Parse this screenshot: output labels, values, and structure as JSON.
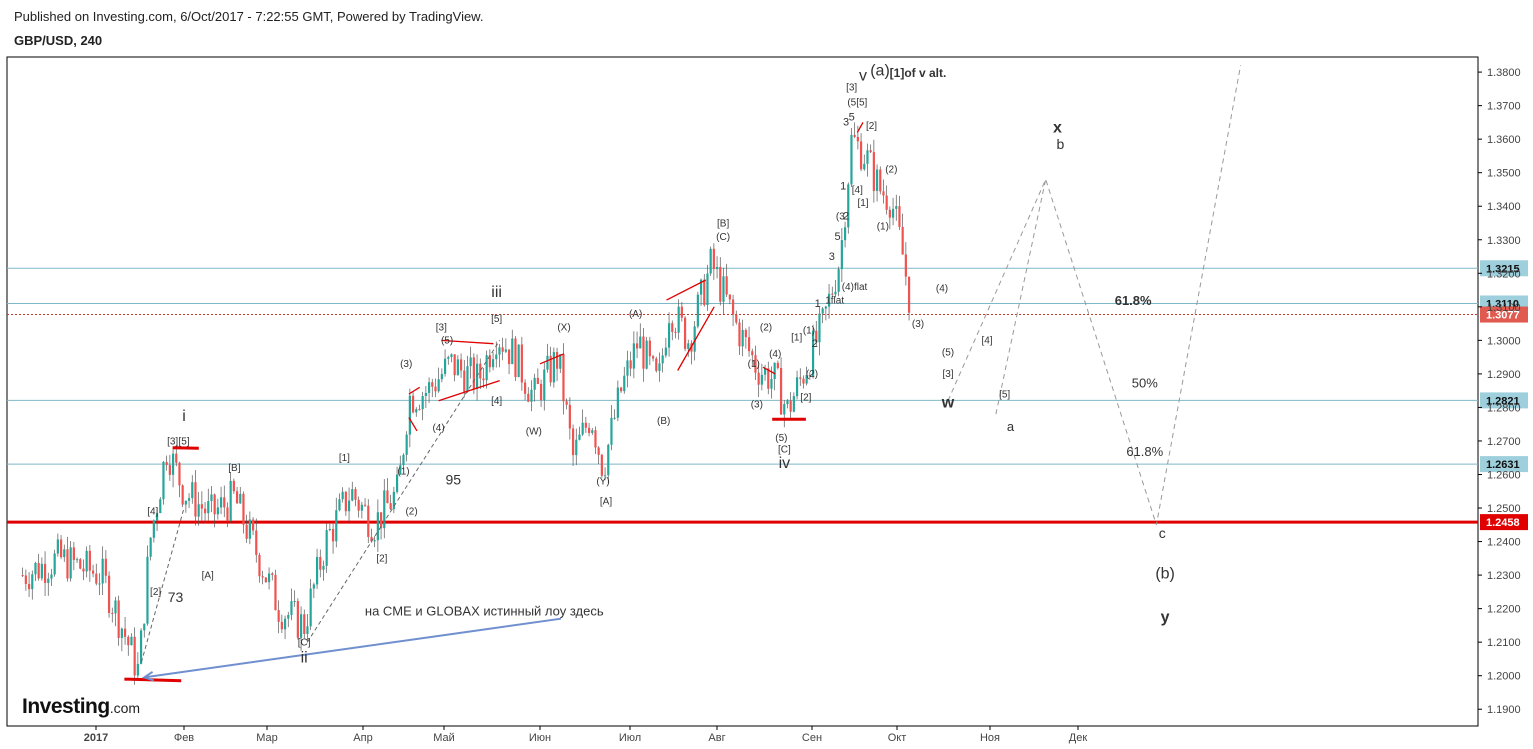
{
  "header": {
    "published": "Published on Investing.com, 6/Oct/2017 - 7:22:55 GMT, Powered by TradingView.",
    "symbol": "GBP/USD, 240"
  },
  "logo": {
    "main": "Investing",
    "suffix": ".com"
  },
  "colors": {
    "up": "#26a69a",
    "down": "#ef5350",
    "wick": "#555555",
    "red_line": "#e00000",
    "teal_line": "#7fb8c8",
    "orange": "#f5a623",
    "cyan": "#2fd0e0",
    "blue_arrow": "#6f8fcf",
    "dashed": "#999999"
  },
  "chart_data": {
    "type": "candlestick",
    "title": "GBP/USD, 240",
    "ylim": [
      1.185,
      1.3845
    ],
    "y_ticks": [
      "1.1900",
      "1.2000",
      "1.2100",
      "1.2200",
      "1.2300",
      "1.2400",
      "1.2500",
      "1.2600",
      "1.2700",
      "1.2800",
      "1.2900",
      "1.3000",
      "1.3100",
      "1.3200",
      "1.3300",
      "1.3400",
      "1.3500",
      "1.3600",
      "1.3700",
      "1.3800"
    ],
    "x_labels": [
      "2017",
      "Фев",
      "Мар",
      "Апр",
      "Май",
      "Июн",
      "Июл",
      "Авг",
      "Сен",
      "Окт",
      "Ноя",
      "Дек"
    ],
    "price_path": [
      [
        "2016-12-22",
        1.23
      ],
      [
        "2016-12-27",
        1.235
      ],
      [
        "2017-01-03",
        1.23
      ],
      [
        "2017-01-10",
        1.215
      ],
      [
        "2017-01-16",
        1.201
      ],
      [
        "2017-01-20",
        1.24
      ],
      [
        "2017-01-26",
        1.268
      ],
      [
        "2017-02-01",
        1.255
      ],
      [
        "2017-02-10",
        1.248
      ],
      [
        "2017-02-18",
        1.253
      ],
      [
        "2017-02-24",
        1.24
      ],
      [
        "2017-03-05",
        1.22
      ],
      [
        "2017-03-13",
        1.215
      ],
      [
        "2017-03-20",
        1.24
      ],
      [
        "2017-03-28",
        1.255
      ],
      [
        "2017-04-05",
        1.245
      ],
      [
        "2017-04-14",
        1.255
      ],
      [
        "2017-04-18",
        1.283
      ],
      [
        "2017-04-25",
        1.285
      ],
      [
        "2017-05-03",
        1.293
      ],
      [
        "2017-05-12",
        1.288
      ],
      [
        "2017-05-18",
        1.302
      ],
      [
        "2017-05-24",
        1.295
      ],
      [
        "2017-05-30",
        1.283
      ],
      [
        "2017-06-07",
        1.295
      ],
      [
        "2017-06-12",
        1.265
      ],
      [
        "2017-06-18",
        1.278
      ],
      [
        "2017-06-22",
        1.262
      ],
      [
        "2017-06-28",
        1.285
      ],
      [
        "2017-07-04",
        1.3
      ],
      [
        "2017-07-11",
        1.286
      ],
      [
        "2017-07-15",
        1.31
      ],
      [
        "2017-07-22",
        1.3
      ],
      [
        "2017-07-30",
        1.323
      ],
      [
        "2017-08-07",
        1.305
      ],
      [
        "2017-08-14",
        1.292
      ],
      [
        "2017-08-20",
        1.288
      ],
      [
        "2017-08-24",
        1.279
      ],
      [
        "2017-08-30",
        1.292
      ],
      [
        "2017-09-05",
        1.305
      ],
      [
        "2017-09-11",
        1.325
      ],
      [
        "2017-09-15",
        1.36
      ],
      [
        "2017-09-20",
        1.355
      ],
      [
        "2017-09-25",
        1.345
      ],
      [
        "2017-09-29",
        1.342
      ],
      [
        "2017-10-03",
        1.325
      ],
      [
        "2017-10-06",
        1.3077
      ]
    ],
    "current_price": "1.3077",
    "horizontal_levels": [
      {
        "price": 1.3215,
        "label": "1.3215",
        "style": "teal"
      },
      {
        "price": 1.311,
        "label": "1.3110",
        "style": "teal"
      },
      {
        "price": 1.2821,
        "label": "1.2821",
        "style": "teal"
      },
      {
        "price": 1.2631,
        "label": "1.2631",
        "style": "teal"
      },
      {
        "price": 1.2458,
        "label": "1.2458",
        "style": "red"
      }
    ],
    "fib_labels": [
      {
        "text": "61.8%",
        "date": "2017-12-20",
        "price": 1.3105,
        "color": "cyan"
      },
      {
        "text": "50%",
        "date": "2017-12-24",
        "price": 1.286,
        "color": "dark"
      },
      {
        "text": "61.8%",
        "date": "2017-12-24",
        "price": 1.2655,
        "color": "dark"
      }
    ],
    "projection_path": [
      [
        "2017-10-18",
        1.282
      ],
      [
        "2017-11-20",
        1.348
      ],
      [
        "2017-12-28",
        1.245
      ],
      [
        "2018-01-26",
        1.382
      ]
    ],
    "projection_alt": [
      [
        "2017-11-03",
        1.278
      ],
      [
        "2017-11-20",
        1.348
      ]
    ],
    "wave_labels": [
      {
        "text": "i",
        "date": "2017-02-01",
        "price": 1.276,
        "size": 16
      },
      {
        "text": "[3]",
        "date": "2017-01-28",
        "price": 1.269,
        "size": 10
      },
      {
        "text": "[5]",
        "date": "2017-02-01",
        "price": 1.269,
        "size": 10
      },
      {
        "text": "[B]",
        "date": "2017-02-18",
        "price": 1.261,
        "size": 10
      },
      {
        "text": "[1]",
        "date": "2017-03-26",
        "price": 1.264,
        "size": 10
      },
      {
        "text": "[A]",
        "date": "2017-02-09",
        "price": 1.229,
        "size": 10
      },
      {
        "text": "[4]",
        "date": "2017-01-21",
        "price": 1.248,
        "size": 10
      },
      {
        "text": "[2]",
        "date": "2017-01-22",
        "price": 1.224,
        "size": 10
      },
      {
        "text": "73",
        "date": "2017-01-29",
        "price": 1.222,
        "size": 14
      },
      {
        "text": "[2]",
        "date": "2017-04-08",
        "price": 1.234,
        "size": 10
      },
      {
        "text": "(2)",
        "date": "2017-04-19",
        "price": 1.248,
        "size": 10
      },
      {
        "text": "(1)",
        "date": "2017-04-16",
        "price": 1.26,
        "size": 10
      },
      {
        "text": "[C]",
        "date": "2017-03-13",
        "price": 1.209,
        "size": 10
      },
      {
        "text": "ii",
        "date": "2017-03-13",
        "price": 1.204,
        "size": 16
      },
      {
        "text": "95",
        "date": "2017-05-04",
        "price": 1.257,
        "size": 14
      },
      {
        "text": "(3)",
        "date": "2017-04-17",
        "price": 1.292,
        "size": 10
      },
      {
        "text": "(4)",
        "date": "2017-04-29",
        "price": 1.273,
        "size": 10
      },
      {
        "text": "[3]",
        "date": "2017-04-30",
        "price": 1.303,
        "size": 10
      },
      {
        "text": "(5)",
        "date": "2017-05-02",
        "price": 1.299,
        "size": 10
      },
      {
        "text": "iii",
        "date": "2017-05-18",
        "price": 1.313,
        "size": 16
      },
      {
        "text": "[5]",
        "date": "2017-05-18",
        "price": 1.3055,
        "size": 10
      },
      {
        "text": "[4]",
        "date": "2017-05-18",
        "price": 1.281,
        "size": 10
      },
      {
        "text": "(W)",
        "date": "2017-05-30",
        "price": 1.272,
        "size": 10
      },
      {
        "text": "(X)",
        "date": "2017-06-09",
        "price": 1.303,
        "size": 10
      },
      {
        "text": "(Y)",
        "date": "2017-06-22",
        "price": 1.257,
        "size": 10
      },
      {
        "text": "[A]",
        "date": "2017-06-23",
        "price": 1.251,
        "size": 10
      },
      {
        "text": "(A)",
        "date": "2017-07-03",
        "price": 1.307,
        "size": 10
      },
      {
        "text": "(B)",
        "date": "2017-07-13",
        "price": 1.275,
        "size": 10
      },
      {
        "text": "[B]",
        "date": "2017-08-03",
        "price": 1.334,
        "size": 10
      },
      {
        "text": "(C)",
        "date": "2017-08-03",
        "price": 1.33,
        "size": 10
      },
      {
        "text": "(2)",
        "date": "2017-08-17",
        "price": 1.303,
        "size": 10
      },
      {
        "text": "(1)",
        "date": "2017-08-13",
        "price": 1.292,
        "size": 10
      },
      {
        "text": "(4)",
        "date": "2017-08-20",
        "price": 1.295,
        "size": 10
      },
      {
        "text": "(3)",
        "date": "2017-08-14",
        "price": 1.28,
        "size": 10
      },
      {
        "text": "(5)",
        "date": "2017-08-22",
        "price": 1.27,
        "size": 10
      },
      {
        "text": "[C]",
        "date": "2017-08-23",
        "price": 1.2665,
        "size": 10
      },
      {
        "text": "iv",
        "date": "2017-08-23",
        "price": 1.262,
        "size": 16
      },
      {
        "text": "[1]",
        "date": "2017-08-27",
        "price": 1.3,
        "size": 10
      },
      {
        "text": "(1)",
        "date": "2017-08-31",
        "price": 1.302,
        "size": 10
      },
      {
        "text": "(2)",
        "date": "2017-09-01",
        "price": 1.289,
        "size": 10
      },
      {
        "text": "[2]",
        "date": "2017-08-30",
        "price": 1.282,
        "size": 10
      },
      {
        "text": "2",
        "date": "2017-09-02",
        "price": 1.298,
        "size": 11
      },
      {
        "text": "1",
        "date": "2017-09-03",
        "price": 1.31,
        "size": 11
      },
      {
        "text": "1flat",
        "date": "2017-09-09",
        "price": 1.311,
        "size": 10
      },
      {
        "text": "(4)flat",
        "date": "2017-09-16",
        "price": 1.315,
        "size": 10
      },
      {
        "text": "3",
        "date": "2017-09-08",
        "price": 1.324,
        "size": 11
      },
      {
        "text": "5",
        "date": "2017-09-10",
        "price": 1.33,
        "size": 11
      },
      {
        "text": "(3",
        "date": "2017-09-11",
        "price": 1.336,
        "size": 10
      },
      {
        "text": "2",
        "date": "2017-09-13",
        "price": 1.336,
        "size": 11
      },
      {
        "text": "1",
        "date": "2017-09-12",
        "price": 1.345,
        "size": 11
      },
      {
        "text": "[4]",
        "date": "2017-09-17",
        "price": 1.344,
        "size": 10
      },
      {
        "text": "[1]",
        "date": "2017-09-19",
        "price": 1.34,
        "size": 10
      },
      {
        "text": "3",
        "date": "2017-09-13",
        "price": 1.364,
        "size": 11
      },
      {
        "text": "5",
        "date": "2017-09-15",
        "price": 1.3655,
        "size": 11
      },
      {
        "text": "[2]",
        "date": "2017-09-22",
        "price": 1.363,
        "size": 10
      },
      {
        "text": "(5[5]",
        "date": "2017-09-17",
        "price": 1.37,
        "size": 10
      },
      {
        "text": "[3]",
        "date": "2017-09-15",
        "price": 1.3745,
        "size": 10
      },
      {
        "text": "v",
        "date": "2017-09-19",
        "price": 1.3775,
        "size": 16
      },
      {
        "text": "(a)",
        "date": "2017-09-25",
        "price": 1.379,
        "size": 16
      },
      {
        "text": "(2)",
        "date": "2017-09-29",
        "price": 1.35,
        "size": 10
      },
      {
        "text": "(1)",
        "date": "2017-09-26",
        "price": 1.333,
        "size": 10
      },
      {
        "text": "(4)",
        "date": "2017-10-16",
        "price": 1.3145,
        "size": 10
      },
      {
        "text": "(3)",
        "date": "2017-10-08",
        "price": 1.304,
        "size": 10
      },
      {
        "text": "(5)",
        "date": "2017-10-18",
        "price": 1.2955,
        "size": 10
      },
      {
        "text": "[4]",
        "date": "2017-10-31",
        "price": 1.299,
        "size": 10
      },
      {
        "text": "[3]",
        "date": "2017-10-18",
        "price": 1.289,
        "size": 10
      },
      {
        "text": "[5]",
        "date": "2017-11-06",
        "price": 1.283,
        "size": 10
      },
      {
        "text": "a",
        "date": "2017-11-08",
        "price": 1.273,
        "size": 13
      },
      {
        "text": "b",
        "date": "2017-11-25",
        "price": 1.357,
        "size": 14
      },
      {
        "text": "c",
        "date": "2017-12-30",
        "price": 1.241,
        "size": 14
      },
      {
        "text": "(b)",
        "date": "2017-12-31",
        "price": 1.229,
        "size": 16
      }
    ],
    "orange_labels": [
      {
        "text": "[1]of v alt.",
        "date": "2017-10-08",
        "price": 1.3785,
        "size": 12
      },
      {
        "text": "x",
        "date": "2017-11-24",
        "price": 1.362,
        "size": 16
      },
      {
        "text": "w",
        "date": "2017-10-18",
        "price": 1.28,
        "size": 16
      },
      {
        "text": "y",
        "date": "2017-12-31",
        "price": 1.216,
        "size": 16
      }
    ],
    "red_segments": [
      [
        [
          "2017-01-11",
          1.199
        ],
        [
          "2017-01-31",
          1.1985
        ]
      ],
      [
        [
          "2017-01-28",
          1.268
        ],
        [
          "2017-02-06",
          1.2678
        ]
      ],
      [
        [
          "2017-08-19",
          1.2765
        ],
        [
          "2017-08-30",
          1.2765
        ]
      ],
      [
        [
          "2017-04-18",
          1.277
        ],
        [
          "2017-04-21",
          1.273
        ]
      ],
      [
        [
          "2017-04-18",
          1.284
        ],
        [
          "2017-04-22",
          1.286
        ]
      ],
      [
        [
          "2017-04-29",
          1.282
        ],
        [
          "2017-05-19",
          1.288
        ]
      ],
      [
        [
          "2017-04-30",
          1.3
        ],
        [
          "2017-05-17",
          1.299
        ]
      ],
      [
        [
          "2017-06-01",
          1.293
        ],
        [
          "2017-06-09",
          1.296
        ]
      ],
      [
        [
          "2017-07-14",
          1.312
        ],
        [
          "2017-07-28",
          1.318
        ]
      ],
      [
        [
          "2017-07-18",
          1.291
        ],
        [
          "2017-07-31",
          1.31
        ]
      ],
      [
        [
          "2017-08-16",
          1.292
        ],
        [
          "2017-08-20",
          1.29
        ]
      ],
      [
        [
          "2017-09-17",
          1.362
        ],
        [
          "2017-09-19",
          1.365
        ]
      ]
    ],
    "dashed_trendlines": [
      [
        [
          "2017-03-14",
          1.21
        ],
        [
          "2017-05-19",
          1.3
        ]
      ],
      [
        [
          "2017-01-17",
          1.204
        ],
        [
          "2017-02-01",
          1.25
        ]
      ]
    ],
    "annotation": {
      "text": "на CME и GLOBAX  истинный лоу здесь",
      "date": "2017-05-14",
      "price": 1.218
    },
    "arrow": {
      "from": [
        "2017-06-08",
        1.217
      ],
      "to": [
        "2017-01-18",
        1.1995
      ]
    }
  }
}
